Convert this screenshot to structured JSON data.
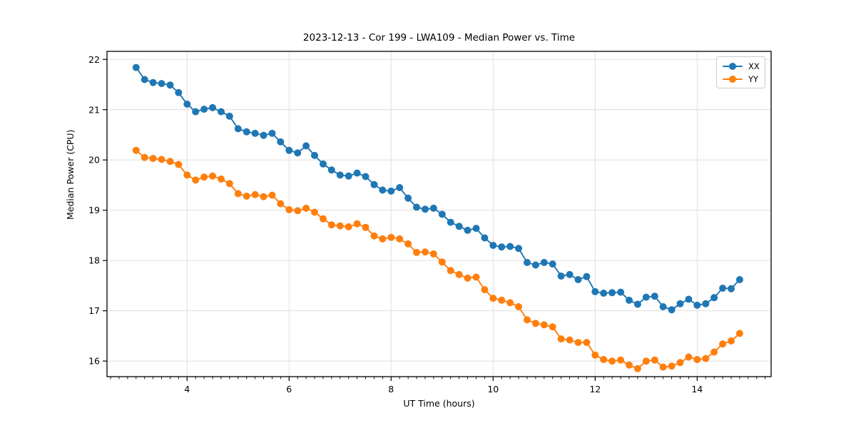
{
  "chart_data": {
    "type": "line",
    "title": "2023-12-13 - Cor 199 - LWA109 - Median Power vs. Time",
    "xlabel": "UT Time (hours)",
    "ylabel": "Median Power (CPU)",
    "xlim": [
      2.43,
      15.45
    ],
    "ylim": [
      15.69,
      22.16
    ],
    "x_ticks": [
      4,
      6,
      8,
      10,
      12,
      14
    ],
    "y_ticks": [
      16,
      17,
      18,
      19,
      20,
      21,
      22
    ],
    "x_minor_step_hours": 0.16667,
    "grid": true,
    "grid_color": "#dcdcdc",
    "legend_position": "upper right",
    "marker": "circle",
    "x": [
      3.0,
      3.167,
      3.333,
      3.5,
      3.667,
      3.833,
      4.0,
      4.167,
      4.333,
      4.5,
      4.667,
      4.833,
      5.0,
      5.167,
      5.333,
      5.5,
      5.667,
      5.833,
      6.0,
      6.167,
      6.333,
      6.5,
      6.667,
      6.833,
      7.0,
      7.167,
      7.333,
      7.5,
      7.667,
      7.833,
      8.0,
      8.167,
      8.333,
      8.5,
      8.667,
      8.833,
      9.0,
      9.167,
      9.333,
      9.5,
      9.667,
      9.833,
      10.0,
      10.167,
      10.333,
      10.5,
      10.667,
      10.833,
      11.0,
      11.167,
      11.333,
      11.5,
      11.667,
      11.833,
      12.0,
      12.167,
      12.333,
      12.5,
      12.667,
      12.833,
      13.0,
      13.167,
      13.333,
      13.5,
      13.667,
      13.833,
      14.0,
      14.167,
      14.333,
      14.5,
      14.667,
      14.833
    ],
    "series": [
      {
        "name": "XX",
        "color": "#1f77b4",
        "values": [
          21.84,
          21.6,
          21.54,
          21.52,
          21.49,
          21.34,
          21.11,
          20.96,
          21.01,
          21.04,
          20.96,
          20.87,
          20.62,
          20.56,
          20.53,
          20.49,
          20.53,
          20.36,
          20.19,
          20.14,
          20.28,
          20.09,
          19.92,
          19.8,
          19.7,
          19.68,
          19.74,
          19.67,
          19.51,
          19.4,
          19.38,
          19.45,
          19.24,
          19.06,
          19.02,
          19.04,
          18.92,
          18.76,
          18.68,
          18.6,
          18.64,
          18.45,
          18.3,
          18.27,
          18.28,
          18.24,
          17.96,
          17.91,
          17.96,
          17.93,
          17.69,
          17.72,
          17.62,
          17.68,
          17.38,
          17.35,
          17.36,
          17.37,
          17.21,
          17.13,
          17.27,
          17.29,
          17.08,
          17.02,
          17.14,
          17.23,
          17.11,
          17.14,
          17.26,
          17.45,
          17.44,
          17.62
        ]
      },
      {
        "name": "YY",
        "color": "#ff7f0e",
        "values": [
          20.19,
          20.05,
          20.03,
          20.01,
          19.97,
          19.91,
          19.7,
          19.6,
          19.66,
          19.68,
          19.62,
          19.53,
          19.33,
          19.28,
          19.31,
          19.27,
          19.3,
          19.13,
          19.01,
          18.99,
          19.04,
          18.96,
          18.83,
          18.71,
          18.69,
          18.67,
          18.73,
          18.66,
          18.49,
          18.43,
          18.46,
          18.43,
          18.33,
          18.16,
          18.17,
          18.13,
          17.97,
          17.8,
          17.72,
          17.65,
          17.67,
          17.42,
          17.25,
          17.21,
          17.16,
          17.08,
          16.82,
          16.75,
          16.72,
          16.68,
          16.44,
          16.42,
          16.37,
          16.37,
          16.12,
          16.03,
          16.0,
          16.02,
          15.92,
          15.85,
          16.0,
          16.02,
          15.88,
          15.9,
          15.97,
          16.08,
          16.03,
          16.05,
          16.18,
          16.34,
          16.4,
          16.55
        ]
      }
    ]
  }
}
